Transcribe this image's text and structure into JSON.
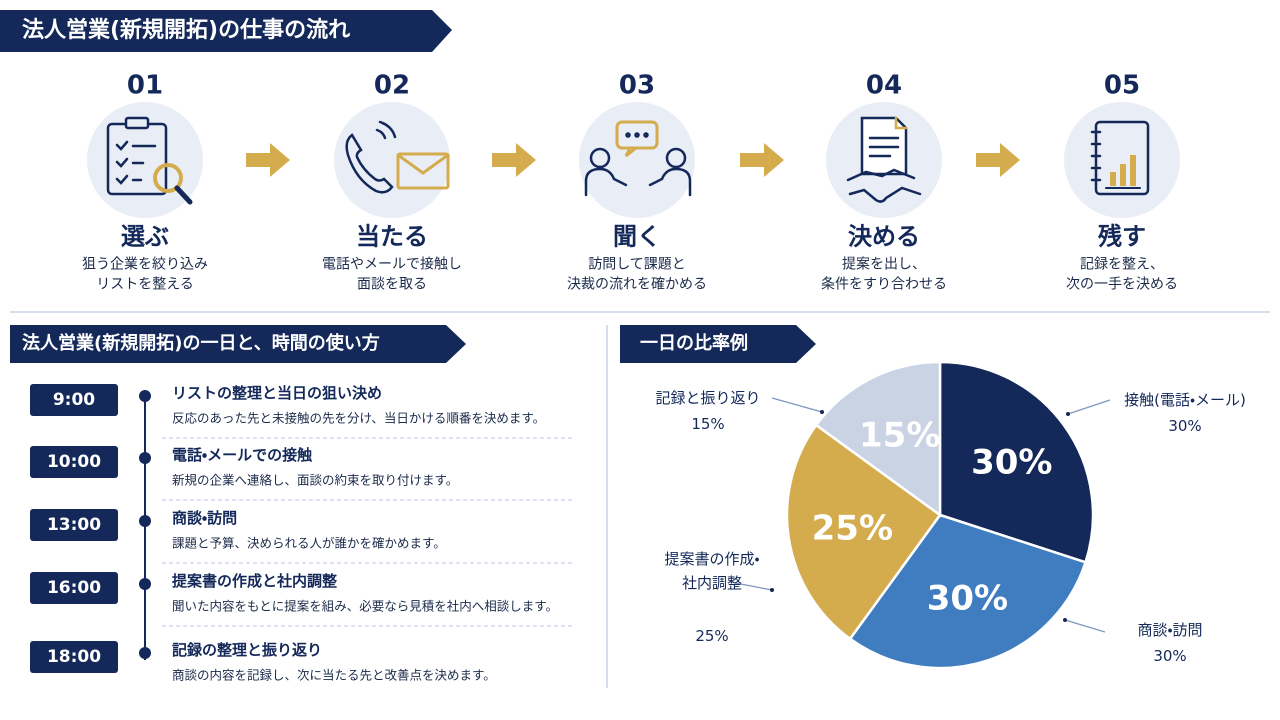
{
  "header": {
    "title": "法人営業(新規開拓)の仕事の流れ"
  },
  "steps": [
    {
      "number": "01",
      "title": "選ぶ",
      "desc": [
        "狙う企業を絞り込み",
        "リストを整える"
      ]
    },
    {
      "number": "02",
      "title": "当たる",
      "desc": [
        "電話やメールで接触し",
        "面談を取る"
      ]
    },
    {
      "number": "03",
      "title": "聞く",
      "desc": [
        "訪問して課題と",
        "決裁の流れを確かめる"
      ]
    },
    {
      "number": "04",
      "title": "決める",
      "desc": [
        "提案を出し、",
        "条件をすり合わせる"
      ]
    },
    {
      "number": "05",
      "title": "残す",
      "desc": [
        "記録を整え、",
        "次の一手を決める"
      ]
    }
  ],
  "schedule": {
    "title": "法人営業(新規開拓)の一日と、時間の使い方",
    "items": [
      {
        "time": "9:00",
        "title": "リストの整理と当日の狙い決め",
        "desc": "反応のあった先と未接触の先を分け、当日かける順番を決めます。"
      },
      {
        "time": "10:00",
        "title": "電話・メールでの接触",
        "desc": "新規の企業へ連絡し、面談の約束を取り付けます。"
      },
      {
        "time": "13:00",
        "title": "商談・訪問",
        "desc": "課題と予算、決められる人が誰かを確かめます。"
      },
      {
        "time": "16:00",
        "title": "提案書の作成と社内調整",
        "desc": "聞いた内容をもとに提案を組み、必要なら見積を社内へ相談します。"
      },
      {
        "time": "18:00",
        "title": "記録の整理と振り返り",
        "desc": "商談の内容を記録し、次に当たる先と改善点を決めます。"
      }
    ]
  },
  "chart_data": {
    "type": "pie",
    "title": "一日の比率例",
    "categories": [
      "接触(電話・メール)",
      "商談・訪問",
      "提案書の作成・社内調整",
      "記録と振り返り"
    ],
    "values": [
      30,
      30,
      25,
      15
    ],
    "value_labels": [
      "30%",
      "30%",
      "25%",
      "15%"
    ],
    "colors": [
      "#14295a",
      "#3f7cc0",
      "#d4ac4e",
      "#c9d3e3"
    ]
  }
}
